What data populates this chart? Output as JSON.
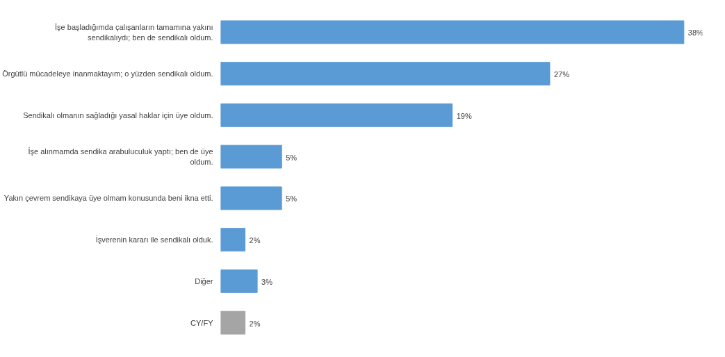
{
  "chart_data": {
    "type": "bar",
    "orientation": "horizontal",
    "categories": [
      "İşe başladığımda çalışanların tamamına yakını sendikalıydı; ben de sendikalı oldum.",
      "Örgütlü mücadeleye inanmaktayım; o yüzden sendikalı oldum.",
      "Sendikalı olmanın sağladığı yasal haklar için üye oldum.",
      "İşe alınmamda sendika arabuluculuk yaptı; ben de üye oldum.",
      "Yakın çevrem sendikaya üye olmam konusunda beni ikna etti.",
      "İşverenin kararı ile sendikalı olduk.",
      "Diğer",
      "CY/FY"
    ],
    "values": [
      38,
      27,
      19,
      5,
      5,
      2,
      3,
      2
    ],
    "value_labels": [
      "38%",
      "27%",
      "19%",
      "5%",
      "5%",
      "2%",
      "3%",
      "2%"
    ],
    "colors": [
      "#5b9bd5",
      "#5b9bd5",
      "#5b9bd5",
      "#5b9bd5",
      "#5b9bd5",
      "#5b9bd5",
      "#5b9bd5",
      "#a5a5a5"
    ],
    "grid": false
  }
}
